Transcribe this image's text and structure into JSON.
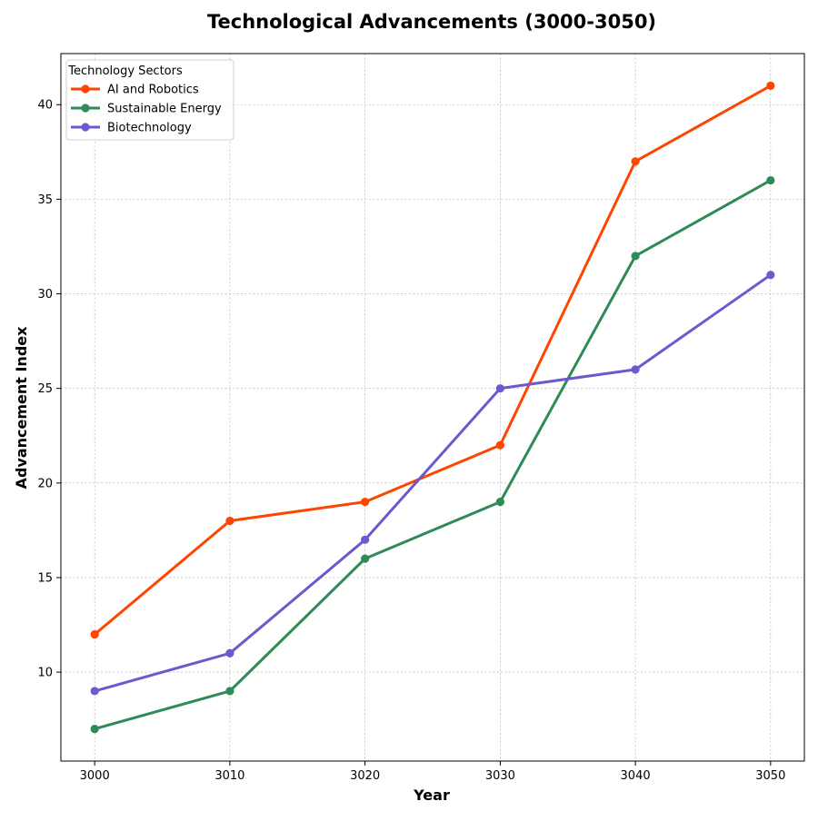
{
  "chart_data": {
    "type": "line",
    "title": "Technological Advancements (3000-3050)",
    "xlabel": "Year",
    "ylabel": "Advancement Index",
    "x": [
      3000,
      3010,
      3020,
      3030,
      3040,
      3050
    ],
    "x_ticks": [
      3000,
      3010,
      3020,
      3030,
      3040,
      3050
    ],
    "xlim": [
      2997.5,
      3052.5
    ],
    "y_ticks": [
      10,
      15,
      20,
      25,
      30,
      35,
      40
    ],
    "ylim": [
      5.3,
      42.7
    ],
    "grid": true,
    "legend": {
      "title": "Technology Sectors",
      "placement": "upper-left"
    },
    "series": [
      {
        "name": "AI and Robotics",
        "color": "#FF4500",
        "values": [
          12,
          18,
          19,
          22,
          37,
          41
        ]
      },
      {
        "name": "Sustainable Energy",
        "color": "#2E8B57",
        "values": [
          7,
          9,
          16,
          19,
          32,
          36
        ]
      },
      {
        "name": "Biotechnology",
        "color": "#6A5ACD",
        "values": [
          9,
          11,
          17,
          25,
          26,
          31
        ]
      }
    ]
  }
}
